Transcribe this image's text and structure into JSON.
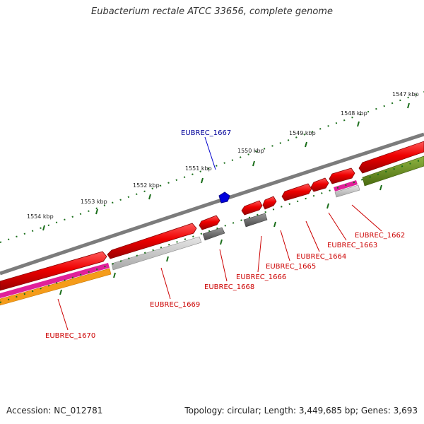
{
  "title": "Eubacterium rectale ATCC 33656, complete genome",
  "footer": {
    "accession": "Accession: NC_012781",
    "info": "Topology: circular; Length: 3,449,685 bp; Genes: 3,693"
  },
  "colors": {
    "backbone": "#8c8c8c",
    "cds": "#ee0000",
    "cds_dark": "#a00000",
    "pseudo": "#666666",
    "pseudo_light": "#c0c0c0",
    "rna_magenta": "#e0209a",
    "rna_orange": "#f59c1a",
    "olive": "#6b8e23",
    "ticks": "#1a6e1a",
    "highlight": "#0000dd",
    "label_red": "#cc0000",
    "label_blue": "#000099"
  },
  "kbp_labels": [
    "1547 kbp",
    "1548 kbp",
    "1549 kbp",
    "1550 kbp",
    "1551 kbp",
    "1552 kbp",
    "1553 kbp",
    "1554 kbp"
  ],
  "gene_labels": [
    {
      "id": "EUBREC_1662",
      "color": "red"
    },
    {
      "id": "EUBREC_1663",
      "color": "red"
    },
    {
      "id": "EUBREC_1664",
      "color": "red"
    },
    {
      "id": "EUBREC_1665",
      "color": "red"
    },
    {
      "id": "EUBREC_1666",
      "color": "red"
    },
    {
      "id": "EUBREC_1668",
      "color": "red"
    },
    {
      "id": "EUBREC_1669",
      "color": "red"
    },
    {
      "id": "EUBREC_1670",
      "color": "red"
    },
    {
      "id": "EUBREC_1667",
      "color": "blue"
    }
  ]
}
